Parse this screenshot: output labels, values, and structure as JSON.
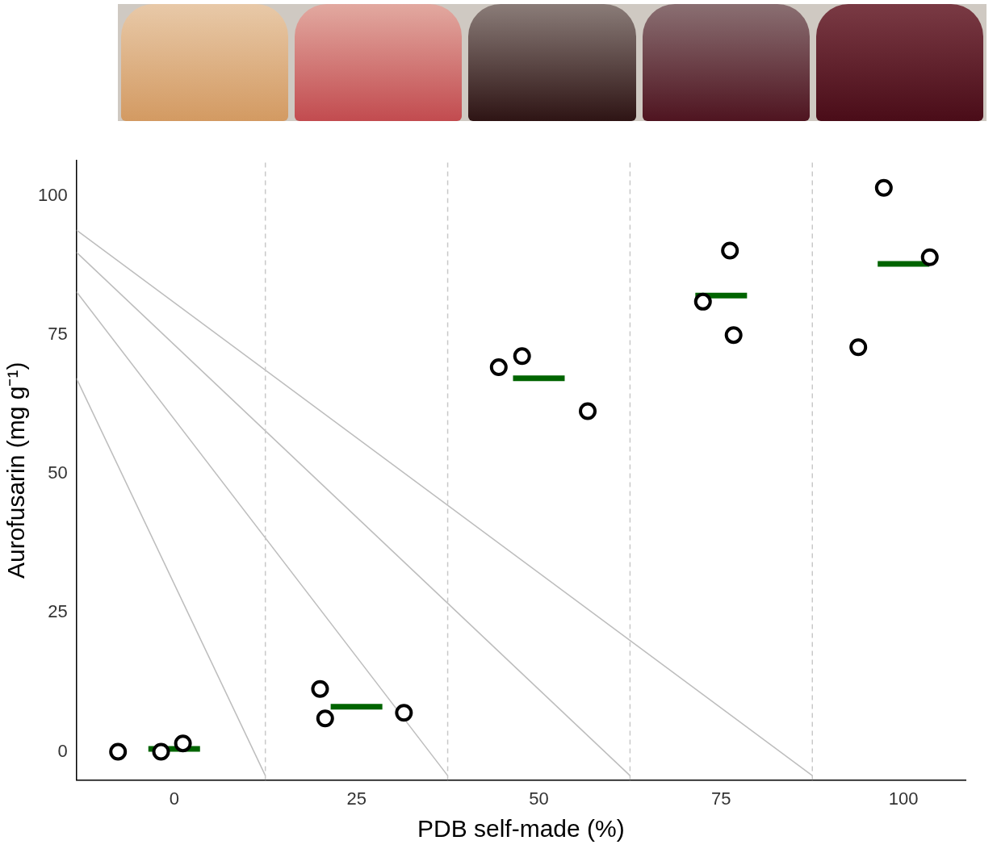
{
  "chart_data": {
    "type": "scatter",
    "x_label": "PDB self-made (%)",
    "y_label": "Aurofusarin (mg g⁻¹)",
    "x": [
      -7.7,
      -1.8,
      1.2,
      20.0,
      20.7,
      31.5,
      44.5,
      47.7,
      56.7,
      72.5,
      76.2,
      76.7,
      93.8,
      97.3,
      103.6
    ],
    "values": [
      0,
      0,
      1.5,
      11.3,
      6.0,
      7.0,
      69.2,
      71.2,
      61.3,
      81.0,
      90.2,
      75.0,
      72.8,
      101.5,
      89.0
    ],
    "color": "#000000",
    "marker": "circle",
    "means": {
      "x": [
        0,
        25,
        50,
        75,
        100
      ],
      "values": [
        0.5,
        8.1,
        67.2,
        82.1,
        87.8
      ],
      "color": "#006400"
    },
    "separators": {
      "x": [
        12.5,
        37.5,
        62.5,
        87.5
      ],
      "color": "#c8c8c8",
      "line_style": "dashed"
    },
    "guides": {
      "color": "#bdbdbd",
      "lines": [
        {
          "x": [
            -13.4,
            12.5
          ],
          "y": [
            67.2,
            -4.3
          ]
        },
        {
          "x": [
            -13.4,
            37.5
          ],
          "y": [
            82.8,
            -4.3
          ]
        },
        {
          "x": [
            -13.4,
            62.5
          ],
          "y": [
            89.9,
            -4.3
          ]
        },
        {
          "x": [
            -13.4,
            87.5
          ],
          "y": [
            93.9,
            -4.3
          ]
        }
      ]
    },
    "xlim": [
      -13.4,
      108.5
    ],
    "ylim": [
      -5.1,
      106.4
    ],
    "xticks": [
      0,
      25,
      50,
      75,
      100
    ],
    "yticks": [
      0,
      25,
      50,
      75,
      100
    ],
    "grid": false
  }
}
